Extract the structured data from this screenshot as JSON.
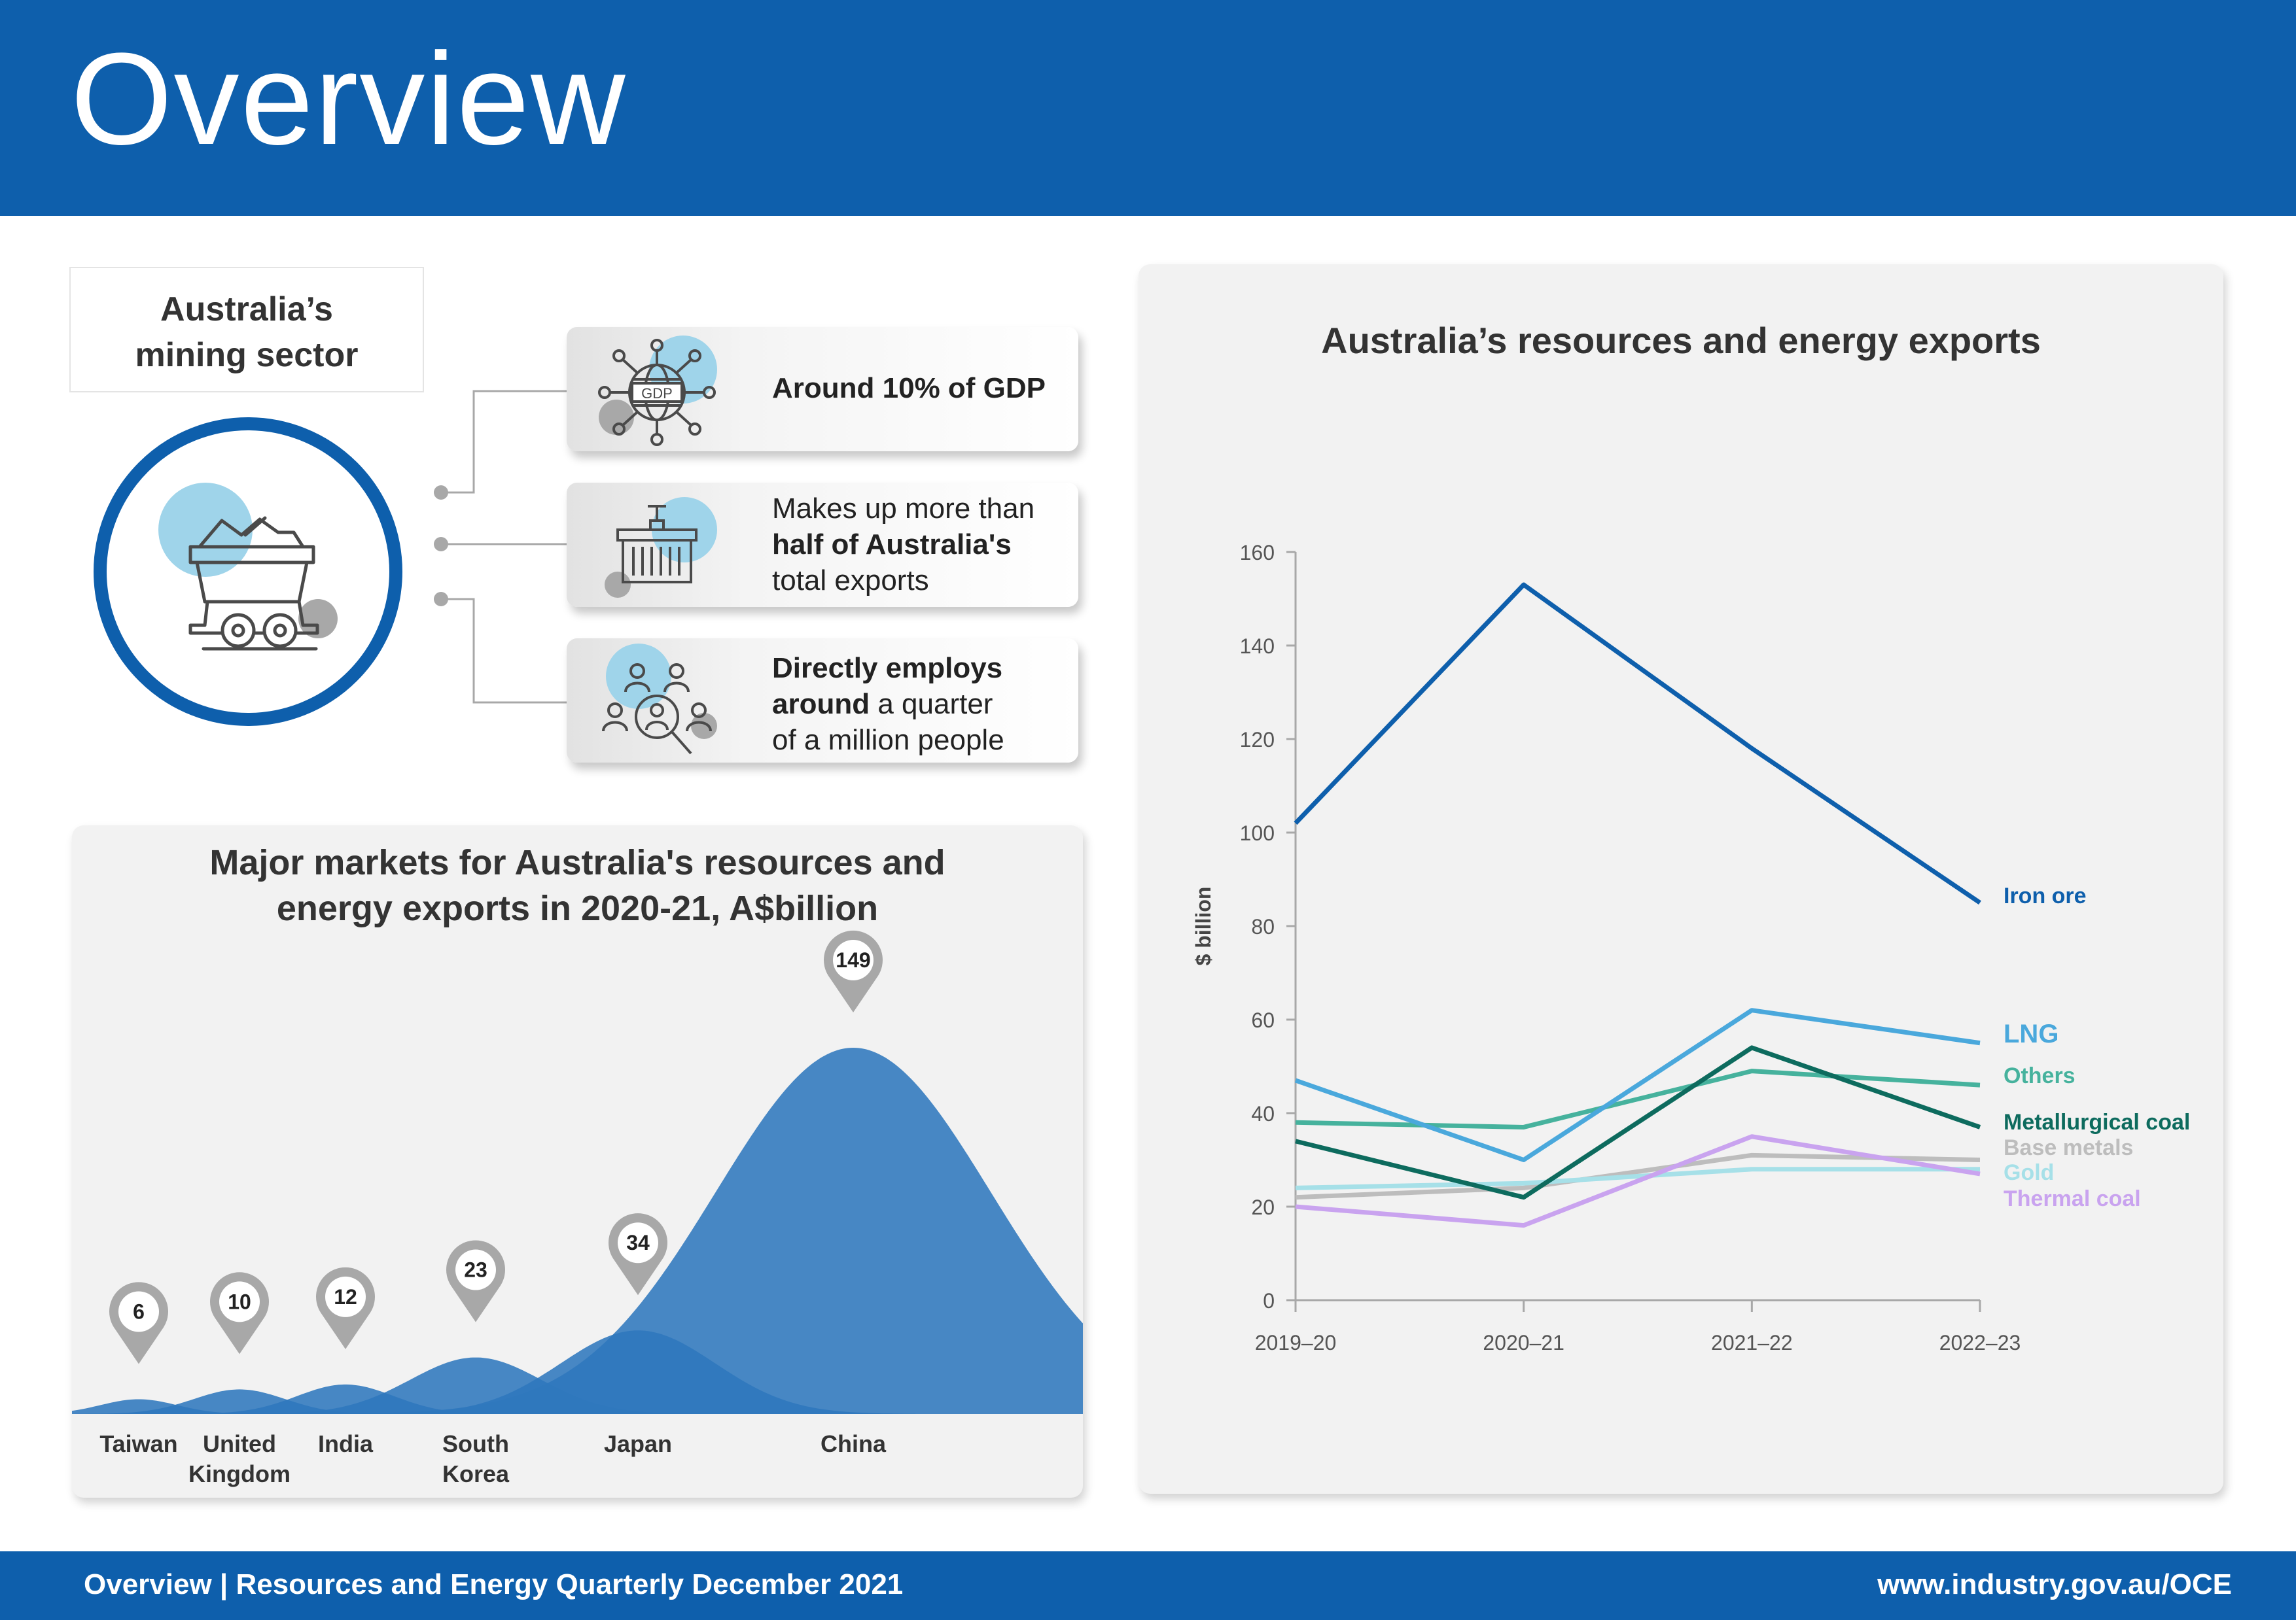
{
  "header": {
    "title": "Overview"
  },
  "sector": {
    "title_line1": "Australia’s",
    "title_line2": "mining sector",
    "icons": [
      "mining-cart-icon",
      "gdp-network-icon",
      "shipping-container-icon",
      "people-search-icon"
    ],
    "facts": [
      {
        "icon": "gdp-network-icon",
        "line1_bold": "Around 10% of GDP"
      },
      {
        "icon": "shipping-container-icon",
        "line1": "Makes up more than",
        "line2_bold": "half of Australia's",
        "line3": "total exports"
      },
      {
        "icon": "people-search-icon",
        "line1_bold": "Directly employs",
        "line2_bold": "around",
        "line2": " a quarter",
        "line3": "of a million people"
      }
    ]
  },
  "markets": {
    "title_line1": "Major markets for Australia's resources and",
    "title_line2": "energy exports in 2020-21, A$billion"
  },
  "exports": {
    "title": "Australia’s resources and energy exports"
  },
  "footer": {
    "left": "Overview | Resources and Energy Quarterly December 2021",
    "right": "www.industry.gov.au/OCE"
  },
  "colors": {
    "brand_blue": "#0e5fac",
    "bubble_blue": "#2f77bd",
    "light_blue": "#9fd4ea",
    "grey_icon": "#a8a8a8"
  },
  "chart_data": [
    {
      "type": "area",
      "categories": [
        "Taiwan",
        "United Kingdom",
        "India",
        "South Korea",
        "Japan",
        "China"
      ],
      "category_lines": [
        [
          "Taiwan"
        ],
        [
          "United",
          "Kingdom"
        ],
        [
          "India"
        ],
        [
          "South",
          "Korea"
        ],
        [
          "Japan"
        ],
        [
          "China"
        ]
      ],
      "values": [
        6,
        10,
        12,
        23,
        34,
        149
      ],
      "title": "Major markets for Australia's resources and energy exports in 2020-21, A$billion",
      "color": "#2f77bd"
    },
    {
      "type": "line",
      "title": "Australia’s resources and energy exports",
      "x": [
        "2019–20",
        "2020–21",
        "2021–22",
        "2022–23"
      ],
      "ylabel": "$ billion",
      "ylim": [
        0,
        160
      ],
      "yticks": [
        0,
        20,
        40,
        60,
        80,
        100,
        120,
        140,
        160
      ],
      "grid": false,
      "legend": "right-end labels",
      "series": [
        {
          "name": "Iron ore",
          "color": "#0e5fac",
          "values": [
            102,
            153,
            118,
            85
          ]
        },
        {
          "name": "LNG",
          "color": "#4aa8dc",
          "values": [
            47,
            30,
            62,
            55
          ]
        },
        {
          "name": "Others",
          "color": "#46b29d",
          "values": [
            38,
            37,
            49,
            46
          ]
        },
        {
          "name": "Metallurgical coal",
          "color": "#0d6b5e",
          "values": [
            34,
            22,
            54,
            37
          ]
        },
        {
          "name": "Base metals",
          "color": "#bdbdbd",
          "values": [
            22,
            24,
            31,
            30
          ]
        },
        {
          "name": "Gold",
          "color": "#a6e0e8",
          "values": [
            24,
            25,
            28,
            28
          ]
        },
        {
          "name": "Thermal coal",
          "color": "#c9a3ef",
          "values": [
            20,
            16,
            35,
            27
          ]
        }
      ]
    }
  ]
}
